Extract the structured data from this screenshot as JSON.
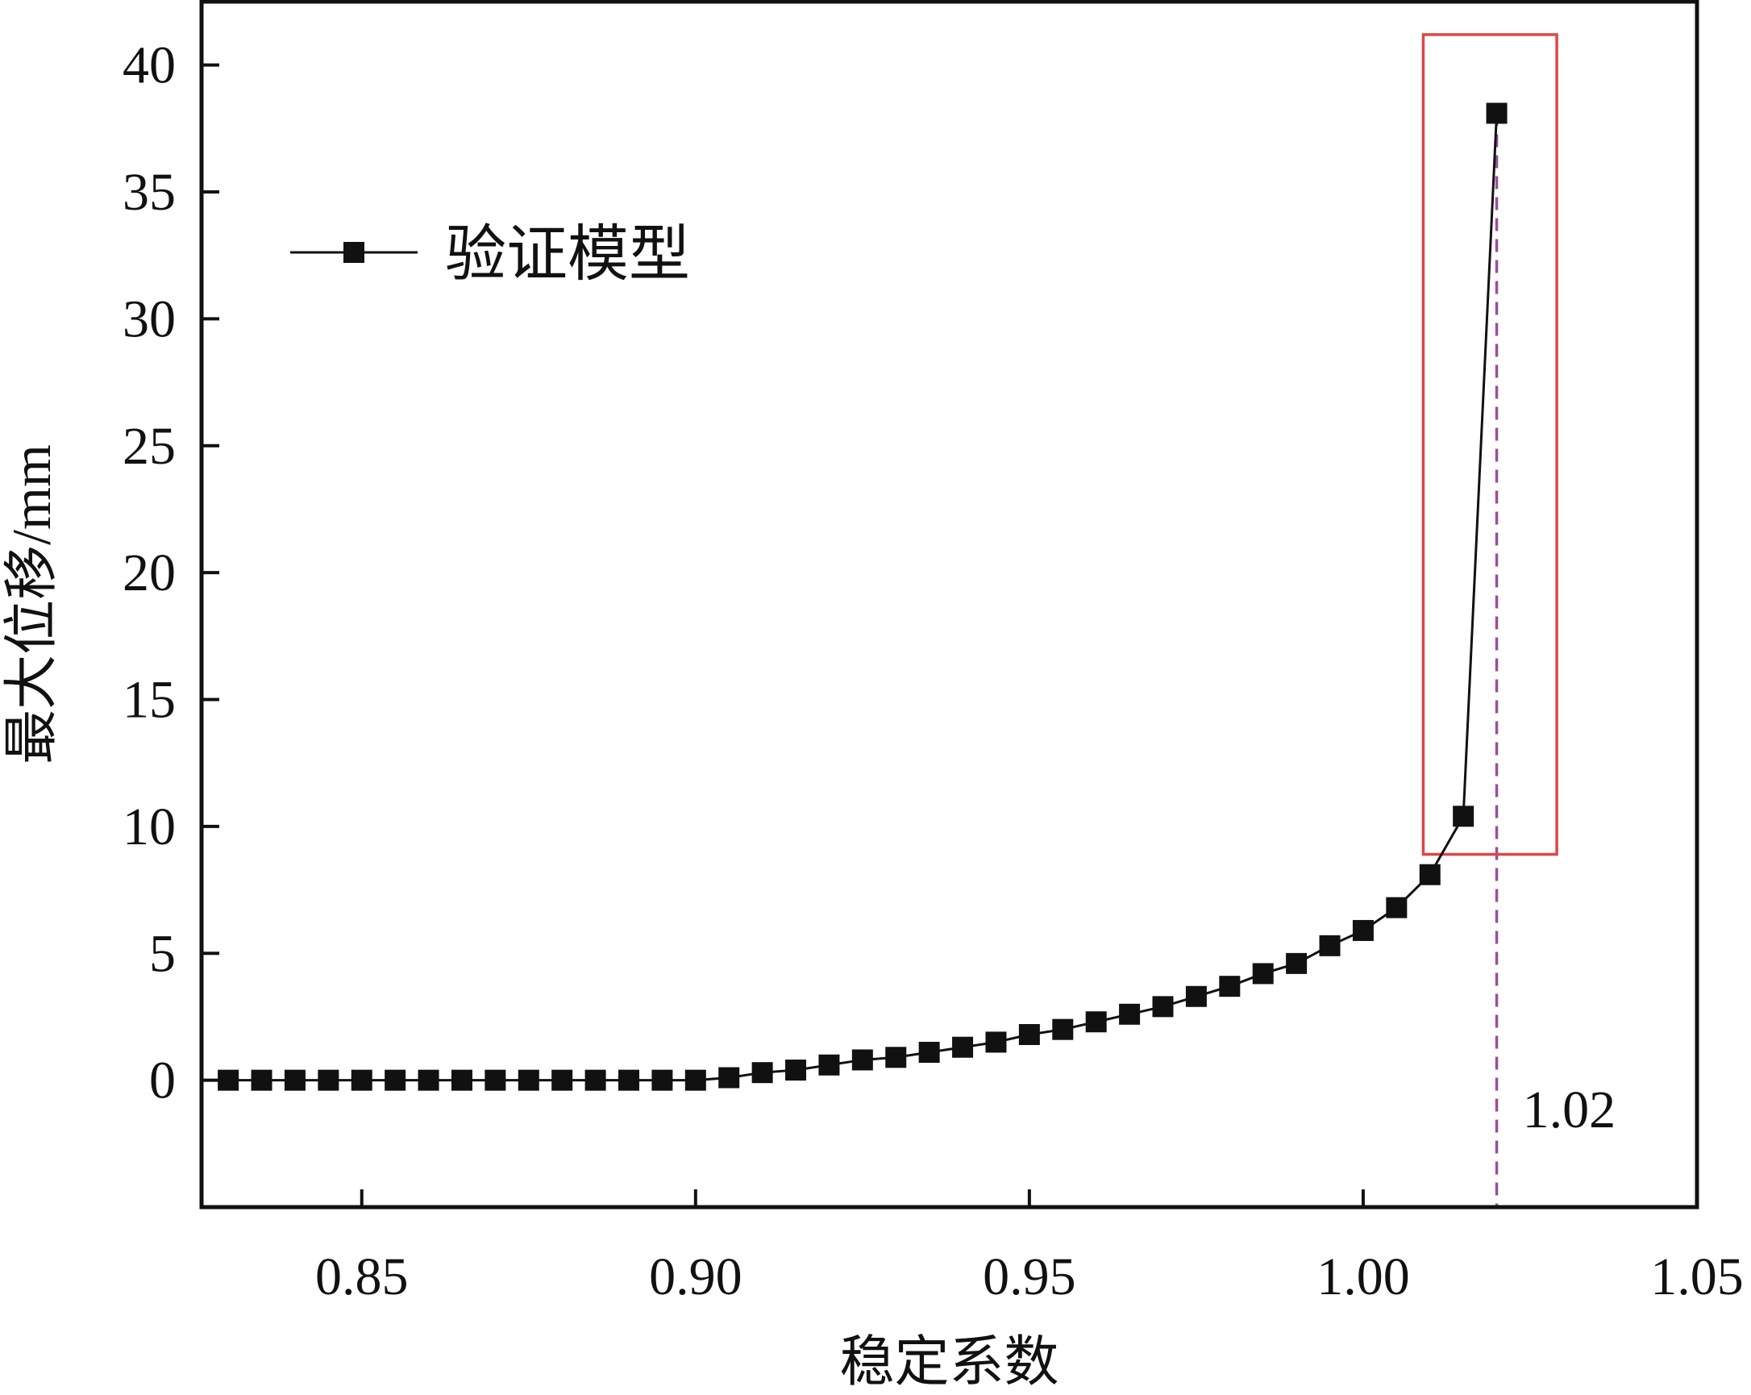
{
  "chart_data": {
    "type": "line",
    "xlabel": "稳定系数",
    "ylabel": "最大位移/mm",
    "xlim": [
      0.826,
      1.05
    ],
    "ylim": [
      -5,
      42.5
    ],
    "xticks": [
      0.85,
      0.9,
      0.95,
      1.0,
      1.05
    ],
    "xtick_labels": [
      "0.85",
      "0.90",
      "0.95",
      "1.00",
      "1.05"
    ],
    "yticks": [
      0,
      5,
      10,
      15,
      20,
      25,
      30,
      35,
      40
    ],
    "ytick_labels": [
      "0",
      "5",
      "10",
      "15",
      "20",
      "25",
      "30",
      "35",
      "40"
    ],
    "grid": false,
    "legend_position": "upper-left",
    "series": [
      {
        "name": "验证模型",
        "marker": "square",
        "color": "#111111",
        "x": [
          0.83,
          0.835,
          0.84,
          0.845,
          0.85,
          0.855,
          0.86,
          0.865,
          0.87,
          0.875,
          0.88,
          0.885,
          0.89,
          0.895,
          0.9,
          0.905,
          0.91,
          0.915,
          0.92,
          0.925,
          0.93,
          0.935,
          0.94,
          0.945,
          0.95,
          0.955,
          0.96,
          0.965,
          0.97,
          0.975,
          0.98,
          0.985,
          0.99,
          0.995,
          1.0,
          1.005,
          1.01,
          1.015,
          1.02
        ],
        "y": [
          0,
          0,
          0,
          0,
          0,
          0,
          0,
          0,
          0,
          0,
          0,
          0,
          0,
          0,
          0,
          0.1,
          0.3,
          0.4,
          0.6,
          0.8,
          0.9,
          1.1,
          1.3,
          1.5,
          1.8,
          2.0,
          2.3,
          2.6,
          2.9,
          3.3,
          3.7,
          4.2,
          4.6,
          5.3,
          5.9,
          6.8,
          8.1,
          10.4,
          38.1
        ]
      }
    ],
    "annotations": [
      {
        "type": "vline",
        "x": 1.02,
        "style": "dashed",
        "color": "#9b4f9a",
        "label": "1.02"
      },
      {
        "type": "rect",
        "x0": 1.009,
        "x1": 1.029,
        "y0": 8.9,
        "y1": 41.2,
        "color": "#e04646"
      }
    ]
  }
}
